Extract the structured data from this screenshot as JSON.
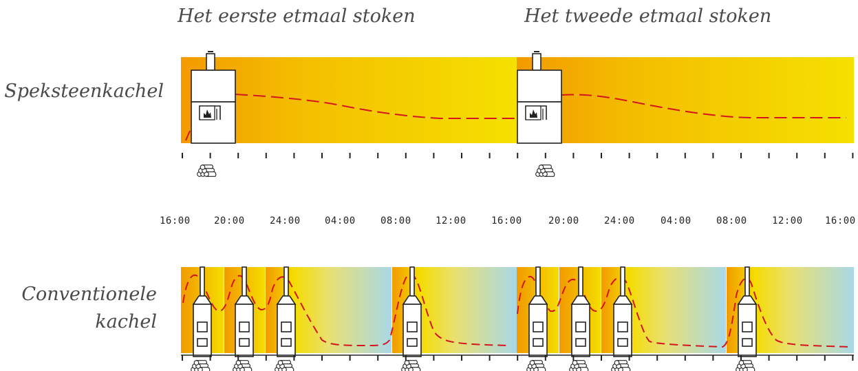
{
  "headers": {
    "first_day": "Het eerste etmaal stoken",
    "second_day": "Het tweede etmaal stoken"
  },
  "rows": {
    "soapstone": "Speksteenkachel",
    "conventional_line1": "Conventionele",
    "conventional_line2": "kachel"
  },
  "time_labels": [
    "16:00",
    "20:00",
    "24:00",
    "04:00",
    "08:00",
    "12:00",
    "16:00",
    "20:00",
    "24:00",
    "04:00",
    "08:00",
    "12:00",
    "16:00"
  ],
  "colors": {
    "warm_orange": "#F29A00",
    "yellow": "#F5E000",
    "cool_blue": "#A8D8E8",
    "temperature_line": "#D4141E"
  },
  "icons": [
    "stove-icon",
    "wood-logs-icon",
    "flame-icon",
    "chimney-icon"
  ]
}
